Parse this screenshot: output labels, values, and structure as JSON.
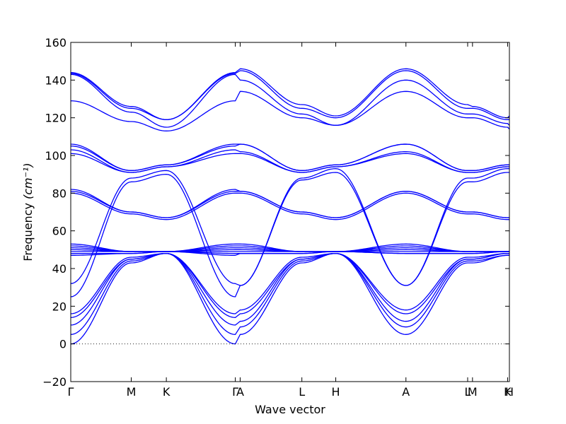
{
  "chart_data": {
    "type": "line",
    "xlabel": "Wave vector",
    "ylabel": "Frequency",
    "ylabel_unit": "(cm⁻¹)",
    "ylim": [
      -20,
      160
    ],
    "yticks": [
      -20,
      0,
      20,
      40,
      60,
      80,
      100,
      120,
      140,
      160
    ],
    "xlim": [
      0,
      7.25
    ],
    "grid": false,
    "zero_line": {
      "y": 0,
      "style": "dotted"
    },
    "line_color": "#0000ff",
    "k_points": [
      {
        "label": "Γ",
        "x": 0
      },
      {
        "label": "M",
        "x": 1.0
      },
      {
        "label": "K",
        "x": 1.58
      },
      {
        "label": "Γ",
        "x": 2.72
      },
      {
        "label": "A",
        "x": 2.8
      },
      {
        "label": "L",
        "x": 3.82
      },
      {
        "label": "H",
        "x": 4.38
      },
      {
        "label": "A",
        "x": 5.54
      },
      {
        "label": "L",
        "x": 6.56
      },
      {
        "label": "M",
        "x": 6.64
      },
      {
        "label": "K",
        "x": 7.22
      },
      {
        "label": "H",
        "x": 7.25
      }
    ],
    "x": [
      0,
      1.0,
      1.58,
      2.72,
      2.8,
      3.82,
      4.38,
      5.54,
      6.56,
      6.64,
      7.22,
      7.25
    ],
    "series": [
      {
        "values": [
          0,
          43,
          48,
          0,
          5,
          43,
          48,
          5,
          43,
          43,
          47,
          47
        ]
      },
      {
        "values": [
          5,
          44,
          48,
          5,
          9,
          44,
          48,
          9,
          44,
          44,
          47,
          47
        ]
      },
      {
        "values": [
          10,
          45,
          48,
          10,
          12,
          45,
          48,
          12,
          45,
          45,
          48,
          48
        ]
      },
      {
        "values": [
          14,
          45,
          48,
          14,
          16,
          45,
          48,
          16,
          45,
          45,
          48,
          48
        ]
      },
      {
        "values": [
          16,
          46,
          48,
          16,
          18,
          46,
          48,
          18,
          46,
          46,
          48,
          48
        ]
      },
      {
        "values": [
          47,
          48,
          49,
          47,
          48,
          48,
          49,
          48,
          48,
          48,
          49,
          49
        ]
      },
      {
        "values": [
          48,
          48,
          49,
          48,
          48,
          48,
          49,
          48,
          48,
          48,
          49,
          49
        ]
      },
      {
        "values": [
          49,
          49,
          49,
          49,
          49,
          49,
          49,
          49,
          49,
          49,
          49,
          49
        ]
      },
      {
        "values": [
          50,
          49,
          49,
          50,
          50,
          49,
          49,
          50,
          49,
          49,
          49,
          49
        ]
      },
      {
        "values": [
          51,
          49,
          49,
          51,
          51,
          49,
          49,
          51,
          49,
          49,
          49,
          49
        ]
      },
      {
        "values": [
          52,
          49,
          49,
          52,
          52,
          49,
          49,
          52,
          49,
          49,
          49,
          49
        ]
      },
      {
        "values": [
          53,
          49,
          49,
          53,
          53,
          49,
          49,
          53,
          49,
          49,
          49,
          49
        ]
      },
      {
        "values": [
          25,
          86,
          90,
          25,
          31,
          87,
          91,
          31,
          86,
          86,
          91,
          91
        ]
      },
      {
        "values": [
          32,
          88,
          92,
          32,
          31,
          88,
          93,
          31,
          88,
          88,
          93,
          93
        ]
      },
      {
        "values": [
          80,
          69,
          66,
          80,
          80,
          69,
          66,
          80,
          69,
          69,
          66,
          66
        ]
      },
      {
        "values": [
          81,
          70,
          67,
          81,
          81,
          70,
          67,
          81,
          70,
          70,
          67,
          67
        ]
      },
      {
        "values": [
          82,
          70,
          67,
          82,
          81,
          70,
          67,
          81,
          70,
          70,
          67,
          67
        ]
      },
      {
        "values": [
          101,
          91,
          94,
          101,
          101,
          91,
          94,
          101,
          91,
          91,
          94,
          94
        ]
      },
      {
        "values": [
          103,
          91,
          94,
          103,
          102,
          91,
          94,
          102,
          91,
          91,
          94,
          94
        ]
      },
      {
        "values": [
          105,
          92,
          95,
          105,
          106,
          92,
          95,
          106,
          92,
          92,
          95,
          95
        ]
      },
      {
        "values": [
          106,
          92,
          95,
          106,
          106,
          92,
          95,
          106,
          92,
          92,
          95,
          95
        ]
      },
      {
        "values": [
          129,
          118,
          113,
          129,
          134,
          120,
          116,
          134,
          120,
          120,
          115,
          114
        ]
      },
      {
        "values": [
          143,
          123,
          115,
          143,
          140,
          122,
          116,
          140,
          122,
          122,
          117,
          116
        ]
      },
      {
        "values": [
          143.5,
          125,
          119,
          143.5,
          145,
          125,
          120,
          145,
          125,
          125,
          119,
          119
        ]
      },
      {
        "values": [
          144,
          126,
          119,
          144,
          146,
          127,
          121,
          146,
          127,
          126,
          120,
          121
        ]
      }
    ]
  }
}
